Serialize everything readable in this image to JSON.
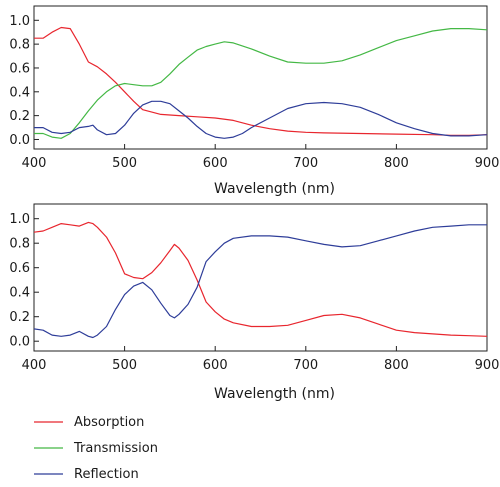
{
  "chart_data": [
    {
      "type": "line",
      "xlabel": "Wavelength (nm)",
      "ylabel": "",
      "xlim": [
        400,
        900
      ],
      "ylim": [
        -0.08,
        1.12
      ],
      "xticks": [
        "400",
        "500",
        "600",
        "700",
        "800",
        "900"
      ],
      "yticks": [
        "0.0",
        "0.2",
        "0.4",
        "0.6",
        "0.8",
        "1.0"
      ],
      "grid": false,
      "series": [
        {
          "name": "Absorption",
          "color": "#e8262e",
          "points": [
            [
              400,
              0.85
            ],
            [
              410,
              0.85
            ],
            [
              420,
              0.9
            ],
            [
              430,
              0.94
            ],
            [
              440,
              0.93
            ],
            [
              450,
              0.8
            ],
            [
              460,
              0.65
            ],
            [
              470,
              0.61
            ],
            [
              480,
              0.55
            ],
            [
              490,
              0.48
            ],
            [
              500,
              0.4
            ],
            [
              510,
              0.32
            ],
            [
              520,
              0.25
            ],
            [
              530,
              0.23
            ],
            [
              540,
              0.21
            ],
            [
              560,
              0.2
            ],
            [
              580,
              0.19
            ],
            [
              600,
              0.18
            ],
            [
              620,
              0.16
            ],
            [
              640,
              0.12
            ],
            [
              660,
              0.09
            ],
            [
              680,
              0.07
            ],
            [
              700,
              0.06
            ],
            [
              720,
              0.055
            ],
            [
              760,
              0.05
            ],
            [
              800,
              0.045
            ],
            [
              840,
              0.04
            ],
            [
              860,
              0.035
            ],
            [
              880,
              0.035
            ],
            [
              900,
              0.04
            ]
          ]
        },
        {
          "name": "Transmission",
          "color": "#44b845",
          "points": [
            [
              400,
              0.05
            ],
            [
              410,
              0.05
            ],
            [
              420,
              0.02
            ],
            [
              430,
              0.01
            ],
            [
              440,
              0.05
            ],
            [
              450,
              0.14
            ],
            [
              460,
              0.24
            ],
            [
              470,
              0.33
            ],
            [
              480,
              0.4
            ],
            [
              490,
              0.45
            ],
            [
              500,
              0.47
            ],
            [
              510,
              0.46
            ],
            [
              520,
              0.45
            ],
            [
              530,
              0.45
            ],
            [
              540,
              0.48
            ],
            [
              550,
              0.55
            ],
            [
              560,
              0.63
            ],
            [
              570,
              0.69
            ],
            [
              580,
              0.75
            ],
            [
              590,
              0.78
            ],
            [
              600,
              0.8
            ],
            [
              610,
              0.82
            ],
            [
              620,
              0.81
            ],
            [
              640,
              0.76
            ],
            [
              660,
              0.7
            ],
            [
              680,
              0.65
            ],
            [
              700,
              0.64
            ],
            [
              720,
              0.64
            ],
            [
              740,
              0.66
            ],
            [
              760,
              0.71
            ],
            [
              780,
              0.77
            ],
            [
              800,
              0.83
            ],
            [
              820,
              0.87
            ],
            [
              840,
              0.91
            ],
            [
              860,
              0.93
            ],
            [
              880,
              0.93
            ],
            [
              900,
              0.92
            ]
          ]
        },
        {
          "name": "Reflection",
          "color": "#2e3d99",
          "points": [
            [
              400,
              0.1
            ],
            [
              410,
              0.1
            ],
            [
              420,
              0.06
            ],
            [
              430,
              0.05
            ],
            [
              440,
              0.06
            ],
            [
              450,
              0.1
            ],
            [
              460,
              0.11
            ],
            [
              465,
              0.12
            ],
            [
              470,
              0.08
            ],
            [
              480,
              0.04
            ],
            [
              490,
              0.05
            ],
            [
              500,
              0.12
            ],
            [
              510,
              0.22
            ],
            [
              520,
              0.29
            ],
            [
              530,
              0.32
            ],
            [
              540,
              0.32
            ],
            [
              550,
              0.3
            ],
            [
              560,
              0.24
            ],
            [
              570,
              0.18
            ],
            [
              580,
              0.11
            ],
            [
              590,
              0.05
            ],
            [
              600,
              0.02
            ],
            [
              610,
              0.01
            ],
            [
              620,
              0.02
            ],
            [
              630,
              0.05
            ],
            [
              640,
              0.1
            ],
            [
              660,
              0.18
            ],
            [
              680,
              0.26
            ],
            [
              700,
              0.3
            ],
            [
              720,
              0.31
            ],
            [
              740,
              0.3
            ],
            [
              760,
              0.27
            ],
            [
              780,
              0.21
            ],
            [
              800,
              0.14
            ],
            [
              820,
              0.09
            ],
            [
              840,
              0.05
            ],
            [
              860,
              0.03
            ],
            [
              880,
              0.03
            ],
            [
              900,
              0.04
            ]
          ]
        }
      ]
    },
    {
      "type": "line",
      "xlabel": "Wavelength (nm)",
      "ylabel": "",
      "xlim": [
        400,
        900
      ],
      "ylim": [
        -0.08,
        1.12
      ],
      "xticks": [
        "400",
        "500",
        "600",
        "700",
        "800",
        "900"
      ],
      "yticks": [
        "0.0",
        "0.2",
        "0.4",
        "0.6",
        "0.8",
        "1.0"
      ],
      "grid": false,
      "series": [
        {
          "name": "Absorption",
          "color": "#e8262e",
          "points": [
            [
              400,
              0.89
            ],
            [
              410,
              0.9
            ],
            [
              420,
              0.93
            ],
            [
              430,
              0.96
            ],
            [
              440,
              0.95
            ],
            [
              450,
              0.94
            ],
            [
              460,
              0.97
            ],
            [
              465,
              0.96
            ],
            [
              470,
              0.93
            ],
            [
              480,
              0.85
            ],
            [
              490,
              0.72
            ],
            [
              500,
              0.55
            ],
            [
              510,
              0.52
            ],
            [
              520,
              0.51
            ],
            [
              530,
              0.56
            ],
            [
              540,
              0.64
            ],
            [
              550,
              0.74
            ],
            [
              555,
              0.79
            ],
            [
              560,
              0.76
            ],
            [
              570,
              0.66
            ],
            [
              580,
              0.5
            ],
            [
              590,
              0.32
            ],
            [
              600,
              0.24
            ],
            [
              610,
              0.18
            ],
            [
              620,
              0.15
            ],
            [
              640,
              0.12
            ],
            [
              660,
              0.12
            ],
            [
              680,
              0.13
            ],
            [
              700,
              0.17
            ],
            [
              720,
              0.21
            ],
            [
              740,
              0.22
            ],
            [
              760,
              0.19
            ],
            [
              780,
              0.14
            ],
            [
              800,
              0.09
            ],
            [
              820,
              0.07
            ],
            [
              840,
              0.06
            ],
            [
              860,
              0.05
            ],
            [
              880,
              0.045
            ],
            [
              900,
              0.04
            ]
          ]
        },
        {
          "name": "Reflection",
          "color": "#2e3d99",
          "points": [
            [
              400,
              0.1
            ],
            [
              410,
              0.09
            ],
            [
              420,
              0.05
            ],
            [
              430,
              0.04
            ],
            [
              440,
              0.05
            ],
            [
              450,
              0.08
            ],
            [
              460,
              0.04
            ],
            [
              465,
              0.03
            ],
            [
              470,
              0.05
            ],
            [
              480,
              0.12
            ],
            [
              490,
              0.26
            ],
            [
              500,
              0.38
            ],
            [
              510,
              0.45
            ],
            [
              520,
              0.48
            ],
            [
              530,
              0.42
            ],
            [
              540,
              0.31
            ],
            [
              550,
              0.21
            ],
            [
              555,
              0.19
            ],
            [
              560,
              0.22
            ],
            [
              570,
              0.3
            ],
            [
              580,
              0.44
            ],
            [
              590,
              0.65
            ],
            [
              600,
              0.73
            ],
            [
              610,
              0.8
            ],
            [
              620,
              0.84
            ],
            [
              640,
              0.86
            ],
            [
              660,
              0.86
            ],
            [
              680,
              0.85
            ],
            [
              700,
              0.82
            ],
            [
              720,
              0.79
            ],
            [
              740,
              0.77
            ],
            [
              760,
              0.78
            ],
            [
              780,
              0.82
            ],
            [
              800,
              0.86
            ],
            [
              820,
              0.9
            ],
            [
              840,
              0.93
            ],
            [
              860,
              0.94
            ],
            [
              880,
              0.95
            ],
            [
              900,
              0.95
            ]
          ]
        }
      ]
    }
  ],
  "legend": {
    "items": [
      {
        "label": "Absorption",
        "color": "#e8262e"
      },
      {
        "label": "Transmission",
        "color": "#44b845"
      },
      {
        "label": "Reflection",
        "color": "#2e3d99"
      }
    ]
  }
}
